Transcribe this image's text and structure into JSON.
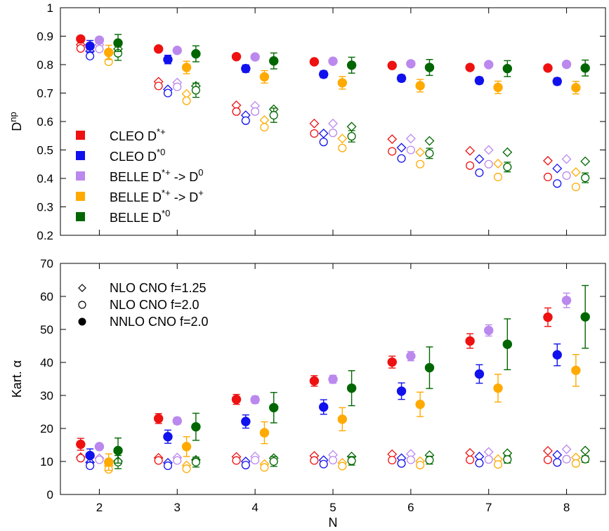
{
  "chart_data": [
    {
      "type": "scatter",
      "ylabel": "D",
      "ylabel_sup": "np",
      "xlim": [
        1.5,
        8.5
      ],
      "ylim": [
        0.2,
        1.0
      ],
      "xticks": [
        2,
        3,
        4,
        5,
        6,
        7,
        8
      ],
      "yticks": [
        0.2,
        0.3,
        0.4,
        0.5,
        0.6,
        0.7,
        0.8,
        0.9,
        1
      ],
      "ytick_labels": [
        "0.2",
        "0.3",
        "0.4",
        "0.5",
        "0.6",
        "0.7",
        "0.8",
        "0.9",
        "1"
      ],
      "x": [
        2,
        3,
        4,
        5,
        6,
        7,
        8
      ],
      "legend": {
        "placement": "left",
        "items": [
          {
            "series": 0,
            "parts": [
              {
                "t": "CLEO D"
              },
              {
                "t": "*+",
                "sup": true
              }
            ]
          },
          {
            "series": 1,
            "parts": [
              {
                "t": "CLEO D"
              },
              {
                "t": "*0",
                "sup": true
              }
            ]
          },
          {
            "series": 2,
            "parts": [
              {
                "t": "BELLE D"
              },
              {
                "t": "*+",
                "sup": true
              },
              {
                "t": " -> D"
              },
              {
                "t": "0",
                "sup": true
              }
            ]
          },
          {
            "series": 3,
            "parts": [
              {
                "t": "BELLE D"
              },
              {
                "t": "*+",
                "sup": true
              },
              {
                "t": " -> D"
              },
              {
                "t": "+",
                "sup": true
              }
            ]
          },
          {
            "series": 4,
            "parts": [
              {
                "t": "BELLE D"
              },
              {
                "t": "*0",
                "sup": true
              }
            ]
          }
        ]
      },
      "series": [
        {
          "color": "#ee1111",
          "offset": -0.24,
          "nnlo": [
            0.89,
            0.855,
            0.828,
            0.81,
            0.797,
            0.79,
            0.788
          ],
          "nnlo_err": [
            0.005,
            0.005,
            0.005,
            0.005,
            0.005,
            0.005,
            0.005
          ],
          "nlo_f2": [
            0.857,
            0.725,
            0.635,
            0.558,
            0.495,
            0.445,
            0.405
          ],
          "nlo_f125": [
            0.87,
            0.74,
            0.657,
            0.593,
            0.538,
            0.497,
            0.462
          ]
        },
        {
          "color": "#1111ee",
          "offset": -0.12,
          "nnlo": [
            0.865,
            0.818,
            0.786,
            0.766,
            0.752,
            0.744,
            0.741
          ],
          "nnlo_err": [
            0.02,
            0.015,
            0.013,
            0.012,
            0.012,
            0.012,
            0.012
          ],
          "nlo_f2": [
            0.83,
            0.7,
            0.603,
            0.528,
            0.47,
            0.42,
            0.382
          ],
          "nlo_f125": [
            0.847,
            0.713,
            0.622,
            0.558,
            0.508,
            0.468,
            0.435
          ]
        },
        {
          "color": "#bb88ee",
          "offset": 0.0,
          "nnlo": [
            0.886,
            0.85,
            0.827,
            0.812,
            0.803,
            0.8,
            0.801
          ],
          "nnlo_err": [
            0.004,
            0.004,
            0.004,
            0.004,
            0.004,
            0.004,
            0.004
          ],
          "nlo_f2": [
            0.855,
            0.722,
            0.635,
            0.56,
            0.5,
            0.45,
            0.41
          ],
          "nlo_f125": [
            0.87,
            0.737,
            0.655,
            0.593,
            0.54,
            0.5,
            0.468
          ]
        },
        {
          "color": "#ffaa00",
          "offset": 0.12,
          "nnlo": [
            0.843,
            0.79,
            0.757,
            0.736,
            0.726,
            0.72,
            0.719
          ],
          "nnlo_err": [
            0.025,
            0.022,
            0.022,
            0.022,
            0.022,
            0.022,
            0.022
          ],
          "nlo_f2": [
            0.81,
            0.673,
            0.58,
            0.507,
            0.45,
            0.405,
            0.37
          ],
          "nlo_f125": [
            0.84,
            0.697,
            0.605,
            0.54,
            0.492,
            0.452,
            0.422
          ]
        },
        {
          "color": "#006600",
          "offset": 0.24,
          "nnlo": [
            0.876,
            0.838,
            0.813,
            0.798,
            0.79,
            0.786,
            0.788
          ],
          "nnlo_err": [
            0.03,
            0.028,
            0.028,
            0.028,
            0.028,
            0.028,
            0.028
          ],
          "nlo_f2": [
            0.84,
            0.71,
            0.622,
            0.548,
            0.488,
            0.44,
            0.402
          ],
          "nlo_f125": [
            0.855,
            0.725,
            0.643,
            0.582,
            0.532,
            0.492,
            0.46
          ],
          "nlo_err": [
            0.025,
            0.025,
            0.025,
            0.02,
            0.018,
            0.017,
            0.017
          ]
        }
      ]
    },
    {
      "type": "scatter",
      "xlabel": "N",
      "ylabel": "Kart. α",
      "xlim": [
        1.5,
        8.5
      ],
      "ylim": [
        0,
        70
      ],
      "xticks": [
        2,
        3,
        4,
        5,
        6,
        7,
        8
      ],
      "xtick_labels": [
        "2",
        "3",
        "4",
        "5",
        "6",
        "7",
        "8"
      ],
      "yticks": [
        0,
        10,
        20,
        30,
        40,
        50,
        60,
        70
      ],
      "ytick_labels": [
        "0",
        "10",
        "20",
        "30",
        "40",
        "50",
        "60",
        "70"
      ],
      "x": [
        2,
        3,
        4,
        5,
        6,
        7,
        8
      ],
      "legend": {
        "placement": "top-left",
        "items": [
          {
            "marker": "diamond",
            "label": "NLO  CNO f=1.25"
          },
          {
            "marker": "open-circle",
            "label": "NLO  CNO f=2.0"
          },
          {
            "marker": "filled-circle",
            "label": "NNLO CNO f=2.0"
          }
        ]
      },
      "series": [
        {
          "color": "#ee1111",
          "offset": -0.24,
          "nnlo": [
            15.2,
            23.0,
            28.8,
            34.4,
            40.1,
            46.5,
            53.7
          ],
          "nnlo_err": [
            1.8,
            1.5,
            1.5,
            1.6,
            1.8,
            2.2,
            2.8
          ],
          "nlo_f2": [
            11.0,
            10.3,
            10.3,
            10.3,
            10.4,
            10.5,
            10.5
          ],
          "nlo_f125": [
            11.3,
            11.1,
            11.4,
            11.7,
            12.2,
            12.6,
            13.2
          ]
        },
        {
          "color": "#1111ee",
          "offset": -0.12,
          "nnlo": [
            11.8,
            17.5,
            22.1,
            26.5,
            31.3,
            36.5,
            42.3
          ],
          "nnlo_err": [
            2.0,
            2.0,
            2.0,
            2.2,
            2.5,
            2.8,
            3.3
          ],
          "nlo_f2": [
            8.7,
            8.7,
            8.9,
            9.2,
            9.4,
            9.5,
            9.7
          ],
          "nlo_f125": [
            9.7,
            9.6,
            10.0,
            10.4,
            11.0,
            11.5,
            12.0
          ]
        },
        {
          "color": "#bb88ee",
          "offset": 0.0,
          "nnlo": [
            14.5,
            22.3,
            28.7,
            34.9,
            41.9,
            49.7,
            58.8
          ],
          "nnlo_err": [
            0.8,
            1.0,
            1.1,
            1.2,
            1.4,
            1.7,
            2.2
          ],
          "nlo_f2": [
            10.5,
            10.3,
            10.4,
            10.4,
            10.5,
            10.6,
            10.7
          ],
          "nlo_f125": [
            11.0,
            11.2,
            11.5,
            12.0,
            12.3,
            12.9,
            13.7
          ]
        },
        {
          "color": "#ffaa00",
          "offset": 0.12,
          "nnlo": [
            9.8,
            14.5,
            18.7,
            22.8,
            27.3,
            32.2,
            37.6
          ],
          "nnlo_err": [
            2.5,
            3.0,
            3.3,
            3.5,
            3.7,
            4.2,
            4.8
          ],
          "nlo_f2": [
            7.6,
            7.8,
            8.2,
            8.6,
            8.9,
            9.1,
            9.4
          ],
          "nlo_f125": [
            8.7,
            8.8,
            9.2,
            9.6,
            10.1,
            10.7,
            11.2
          ]
        },
        {
          "color": "#006600",
          "offset": 0.24,
          "nnlo": [
            13.3,
            20.5,
            26.3,
            32.2,
            38.4,
            45.5,
            53.8
          ],
          "nnlo_err": [
            3.8,
            4.1,
            4.6,
            5.3,
            6.3,
            7.7,
            9.5
          ],
          "nlo_f2": [
            9.8,
            9.8,
            10.0,
            10.2,
            10.4,
            10.6,
            10.7
          ],
          "nlo_f125": [
            10.1,
            10.5,
            11.0,
            11.5,
            11.9,
            12.5,
            13.3
          ],
          "nlo_err": [
            2.0,
            1.5,
            1.5,
            1.3,
            1.2,
            1.1,
            1.0
          ]
        }
      ]
    }
  ]
}
